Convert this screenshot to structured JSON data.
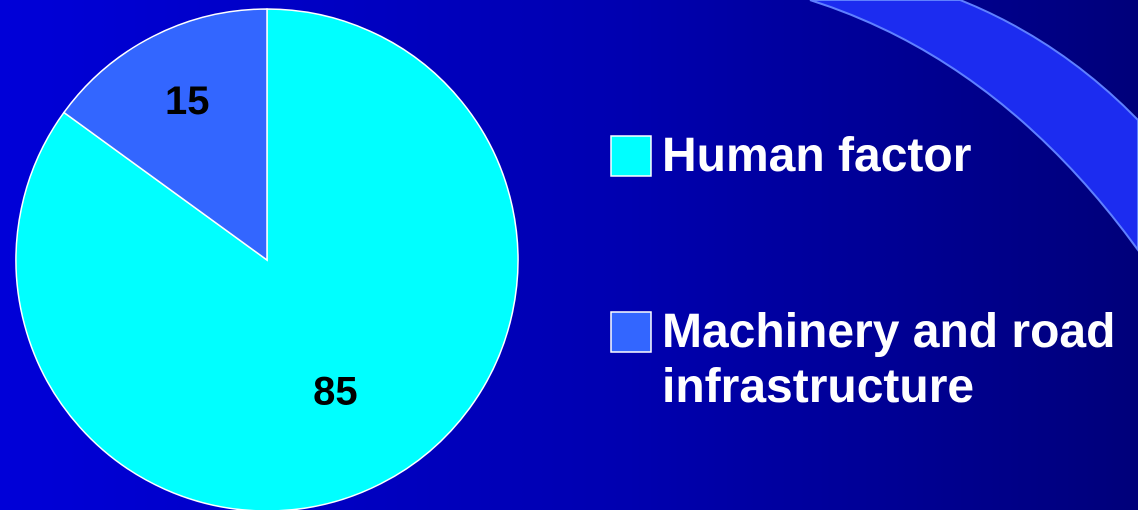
{
  "chart_data": {
    "type": "pie",
    "categories": [
      "Human factor",
      "Machinery and road infrastructure"
    ],
    "values": [
      85,
      15
    ],
    "colors": [
      "#00ffff",
      "#3366ff"
    ],
    "start_angle": 0,
    "direction": "clockwise"
  }
}
